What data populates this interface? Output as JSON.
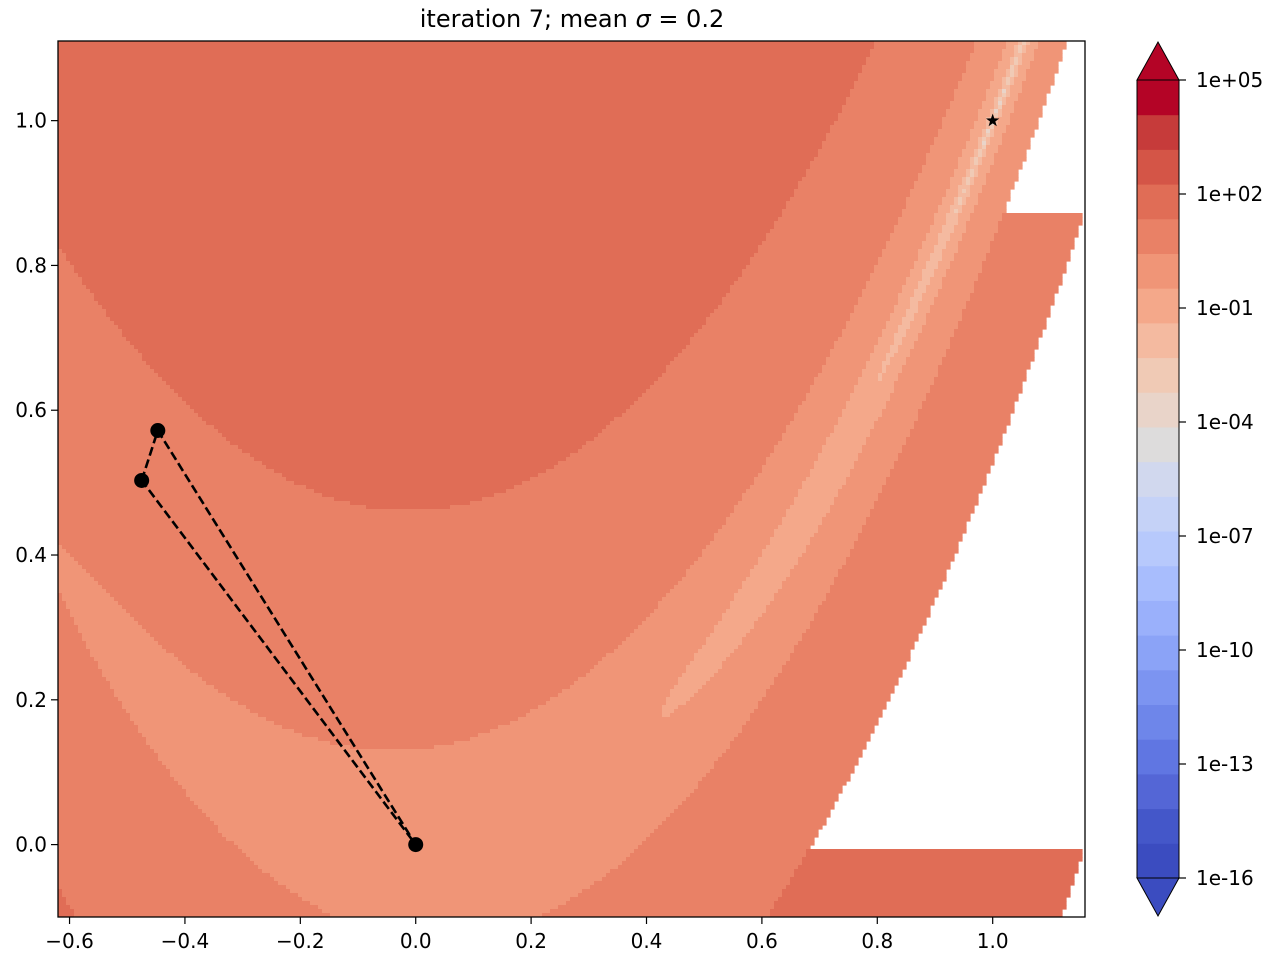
{
  "chart_data": {
    "type": "contour",
    "title": "iteration 7; mean σ = 0.2",
    "title_text": "iteration 7; mean ",
    "title_symbol": "σ",
    "title_rest": " = 0.2",
    "xlim": [
      -0.62,
      1.16
    ],
    "ylim": [
      -0.1,
      1.11
    ],
    "xticks": [
      -0.6,
      -0.4,
      -0.2,
      0.0,
      0.2,
      0.4,
      0.6,
      0.8,
      1.0
    ],
    "xtick_labels": [
      "−0.6",
      "−0.4",
      "−0.2",
      "0.0",
      "0.2",
      "0.4",
      "0.6",
      "0.8",
      "1.0"
    ],
    "yticks": [
      0.0,
      0.2,
      0.4,
      0.6,
      0.8,
      1.0
    ],
    "ytick_labels": [
      "0.0",
      "0.2",
      "0.4",
      "0.6",
      "0.8",
      "1.0"
    ],
    "function": "rosenbrock",
    "colorbar": {
      "scale": "log",
      "min": 1e-16,
      "max": 100000.0,
      "ticks": [
        "1e-16",
        "1e-13",
        "1e-10",
        "1e-07",
        "1e-04",
        "1e-01",
        "1e+02",
        "1e+05"
      ],
      "extend": "both",
      "colormap": "coolwarm",
      "levels": [
        "#3b4cc0",
        "#4457c9",
        "#5466d6",
        "#6076e2",
        "#6e86ea",
        "#7c94f1",
        "#8ba3f7",
        "#9ab0fb",
        "#a8bdfd",
        "#b7c9fc",
        "#c5d2f7",
        "#d1d8ee",
        "#dddcdc",
        "#e9d4c9",
        "#f0cab5",
        "#f4baa0",
        "#f4a88a",
        "#f09577",
        "#e98166",
        "#e06d56",
        "#d45547",
        "#c63b3a",
        "#b40426"
      ],
      "extend_low_color": "#3b4cc0",
      "extend_high_color": "#b40426"
    },
    "simplex": {
      "vertices": [
        [
          -0.475,
          0.503
        ],
        [
          -0.447,
          0.572
        ],
        [
          0.0,
          0.0
        ]
      ],
      "line_style": "dashed",
      "color": "#000000"
    },
    "optimum": {
      "x": 1.0,
      "y": 1.0,
      "marker": "star"
    }
  }
}
